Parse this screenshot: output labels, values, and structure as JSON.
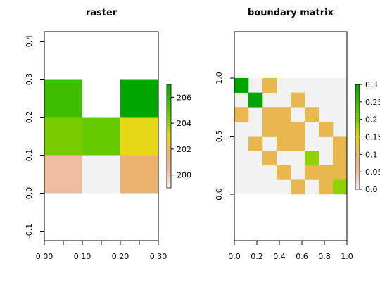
{
  "chart_data": [
    {
      "type": "heatmap",
      "title": "raster",
      "xlim": [
        0.0,
        0.3
      ],
      "ylim": [
        -0.125,
        0.425
      ],
      "x_ticks": [
        "0.00",
        "0.10",
        "0.20",
        "0.30"
      ],
      "x_tick_values": [
        0.0,
        0.1,
        0.2,
        0.3
      ],
      "x_minor_ticks": [
        0.05,
        0.15,
        0.25
      ],
      "y_ticks": [
        "-0.1",
        "0.0",
        "0.1",
        "0.2",
        "0.3",
        "0.4"
      ],
      "y_tick_values": [
        -0.1,
        0.0,
        0.1,
        0.2,
        0.3,
        0.4
      ],
      "grid": false,
      "cell_size": 0.1,
      "grid_extent": {
        "x": [
          0.0,
          0.3
        ],
        "y": [
          0.0,
          0.3
        ]
      },
      "cells": [
        {
          "row": 0,
          "col": 0,
          "value": 205.3,
          "color": "#3cbf00"
        },
        {
          "row": 0,
          "col": 1,
          "value": null,
          "color": null
        },
        {
          "row": 0,
          "col": 2,
          "value": 207.0,
          "color": "#00a600"
        },
        {
          "row": 1,
          "col": 0,
          "value": 204.6,
          "color": "#78cd00"
        },
        {
          "row": 1,
          "col": 1,
          "value": 204.9,
          "color": "#66ca00"
        },
        {
          "row": 1,
          "col": 2,
          "value": 203.7,
          "color": "#e6d717"
        },
        {
          "row": 2,
          "col": 0,
          "value": 199.5,
          "color": "#efbb9e"
        },
        {
          "row": 2,
          "col": 1,
          "value": 199.0,
          "color": "#f2f2f2"
        },
        {
          "row": 2,
          "col": 2,
          "value": 201.2,
          "color": "#ebb26f"
        }
      ],
      "legend": {
        "ticks": [
          "200",
          "202",
          "204",
          "206"
        ],
        "tick_values": [
          200,
          202,
          204,
          206
        ],
        "range": [
          199,
          207
        ],
        "colors": [
          "#f2f2f2",
          "#efbb9e",
          "#ebb26f",
          "#e6d717",
          "#78cd00",
          "#3cbf00",
          "#00a600"
        ]
      }
    },
    {
      "type": "heatmap",
      "title": "boundary matrix",
      "xlim": [
        0.0,
        1.0
      ],
      "ylim": [
        -0.4,
        1.4
      ],
      "x_ticks": [
        "0.0",
        "0.2",
        "0.4",
        "0.6",
        "0.8",
        "1.0"
      ],
      "x_tick_values": [
        0.0,
        0.2,
        0.4,
        0.6,
        0.8,
        1.0
      ],
      "y_ticks": [
        "0.0",
        "0.5",
        "1.0"
      ],
      "y_tick_values": [
        0.0,
        0.5,
        1.0
      ],
      "grid": false,
      "matrix_size": 8,
      "grid_extent": {
        "x": [
          0.0,
          1.0
        ],
        "y": [
          0.0,
          1.0
        ]
      },
      "background_value": 0.0,
      "background_color": "#f2f2f2",
      "cells": [
        {
          "row": 0,
          "col": 0,
          "value": 0.3,
          "color": "#00a600"
        },
        {
          "row": 0,
          "col": 2,
          "value": 0.1,
          "color": "#e8b84f"
        },
        {
          "row": 1,
          "col": 1,
          "value": 0.3,
          "color": "#00a600"
        },
        {
          "row": 1,
          "col": 4,
          "value": 0.1,
          "color": "#e8b84f"
        },
        {
          "row": 2,
          "col": 0,
          "value": 0.1,
          "color": "#e8b84f"
        },
        {
          "row": 2,
          "col": 2,
          "value": 0.1,
          "color": "#e8b84f"
        },
        {
          "row": 2,
          "col": 3,
          "value": 0.1,
          "color": "#e8b84f"
        },
        {
          "row": 2,
          "col": 5,
          "value": 0.1,
          "color": "#e8b84f"
        },
        {
          "row": 3,
          "col": 2,
          "value": 0.1,
          "color": "#e8b84f"
        },
        {
          "row": 3,
          "col": 3,
          "value": 0.1,
          "color": "#e8b84f"
        },
        {
          "row": 3,
          "col": 4,
          "value": 0.1,
          "color": "#e8b84f"
        },
        {
          "row": 3,
          "col": 6,
          "value": 0.1,
          "color": "#e8b84f"
        },
        {
          "row": 4,
          "col": 1,
          "value": 0.1,
          "color": "#e8b84f"
        },
        {
          "row": 4,
          "col": 3,
          "value": 0.1,
          "color": "#e8b84f"
        },
        {
          "row": 4,
          "col": 4,
          "value": 0.1,
          "color": "#e8b84f"
        },
        {
          "row": 4,
          "col": 7,
          "value": 0.1,
          "color": "#e8b84f"
        },
        {
          "row": 5,
          "col": 2,
          "value": 0.1,
          "color": "#e8b84f"
        },
        {
          "row": 5,
          "col": 5,
          "value": 0.2,
          "color": "#8fd000"
        },
        {
          "row": 5,
          "col": 7,
          "value": 0.1,
          "color": "#e8b84f"
        },
        {
          "row": 6,
          "col": 3,
          "value": 0.1,
          "color": "#e8b84f"
        },
        {
          "row": 6,
          "col": 5,
          "value": 0.1,
          "color": "#e8b84f"
        },
        {
          "row": 6,
          "col": 6,
          "value": 0.1,
          "color": "#e8b84f"
        },
        {
          "row": 6,
          "col": 7,
          "value": 0.1,
          "color": "#e8b84f"
        },
        {
          "row": 7,
          "col": 4,
          "value": 0.1,
          "color": "#e8b84f"
        },
        {
          "row": 7,
          "col": 6,
          "value": 0.1,
          "color": "#e8b84f"
        },
        {
          "row": 7,
          "col": 7,
          "value": 0.2,
          "color": "#8fd000"
        }
      ],
      "legend": {
        "ticks": [
          "0.0",
          "0.05",
          "0.1",
          "0.15",
          "0.2",
          "0.25",
          "0.3"
        ],
        "tick_values": [
          0.0,
          0.05,
          0.1,
          0.15,
          0.2,
          0.25,
          0.3
        ],
        "range": [
          0.0,
          0.3
        ],
        "colors": [
          "#f2f2f2",
          "#efbb9e",
          "#ebb26f",
          "#e6d717",
          "#78cd00",
          "#3cbf00",
          "#00a600"
        ]
      }
    }
  ]
}
